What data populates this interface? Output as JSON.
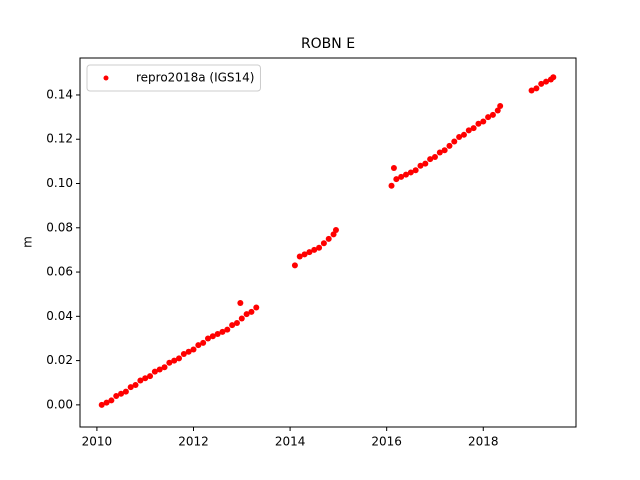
{
  "chart_data": {
    "type": "scatter",
    "title": "ROBN E",
    "ylabel": "m",
    "x": [
      2010.1,
      2010.2,
      2010.3,
      2010.4,
      2010.5,
      2010.6,
      2010.7,
      2010.8,
      2010.9,
      2011.0,
      2011.1,
      2011.2,
      2011.3,
      2011.4,
      2011.5,
      2011.6,
      2011.7,
      2011.8,
      2011.9,
      2012.0,
      2012.1,
      2012.2,
      2012.3,
      2012.4,
      2012.5,
      2012.6,
      2012.7,
      2012.8,
      2012.9,
      2012.97,
      2013.0,
      2013.1,
      2013.2,
      2013.3,
      2014.1,
      2014.2,
      2014.3,
      2014.4,
      2014.5,
      2014.6,
      2014.7,
      2014.8,
      2014.9,
      2014.95,
      2016.1,
      2016.15,
      2016.2,
      2016.3,
      2016.4,
      2016.5,
      2016.6,
      2016.7,
      2016.8,
      2016.9,
      2017.0,
      2017.1,
      2017.2,
      2017.3,
      2017.4,
      2017.5,
      2017.6,
      2017.7,
      2017.8,
      2017.9,
      2018.0,
      2018.1,
      2018.2,
      2018.3,
      2018.35,
      2019.0,
      2019.1,
      2019.2,
      2019.3,
      2019.4,
      2019.45
    ],
    "series": [
      {
        "name": "repro2018a (IGS14)",
        "color": "#ff0000",
        "values": [
          0.0,
          0.001,
          0.002,
          0.004,
          0.005,
          0.006,
          0.008,
          0.009,
          0.011,
          0.012,
          0.013,
          0.015,
          0.016,
          0.017,
          0.019,
          0.02,
          0.021,
          0.023,
          0.024,
          0.025,
          0.027,
          0.028,
          0.03,
          0.031,
          0.032,
          0.033,
          0.034,
          0.036,
          0.037,
          0.046,
          0.039,
          0.041,
          0.042,
          0.044,
          0.063,
          0.067,
          0.068,
          0.069,
          0.07,
          0.071,
          0.073,
          0.075,
          0.077,
          0.079,
          0.099,
          0.107,
          0.102,
          0.103,
          0.104,
          0.105,
          0.106,
          0.108,
          0.109,
          0.111,
          0.112,
          0.114,
          0.115,
          0.117,
          0.119,
          0.121,
          0.122,
          0.124,
          0.125,
          0.127,
          0.128,
          0.13,
          0.131,
          0.133,
          0.135,
          0.142,
          0.143,
          0.145,
          0.146,
          0.147,
          0.148
        ]
      }
    ],
    "xlim": [
      2009.65,
      2019.92
    ],
    "ylim": [
      -0.01,
      0.1567
    ],
    "xticks": [
      2010,
      2012,
      2014,
      2016,
      2018
    ],
    "yticks": [
      {
        "value": 0,
        "label": "0.00"
      },
      {
        "value": 0.02,
        "label": "0.02"
      },
      {
        "value": 0.04,
        "label": "0.04"
      },
      {
        "value": 0.06,
        "label": "0.06"
      },
      {
        "value": 0.08,
        "label": "0.08"
      },
      {
        "value": 0.1,
        "label": "0.10"
      },
      {
        "value": 0.12,
        "label": "0.12"
      },
      {
        "value": 0.14,
        "label": "0.14"
      }
    ],
    "legend": "upper left"
  }
}
